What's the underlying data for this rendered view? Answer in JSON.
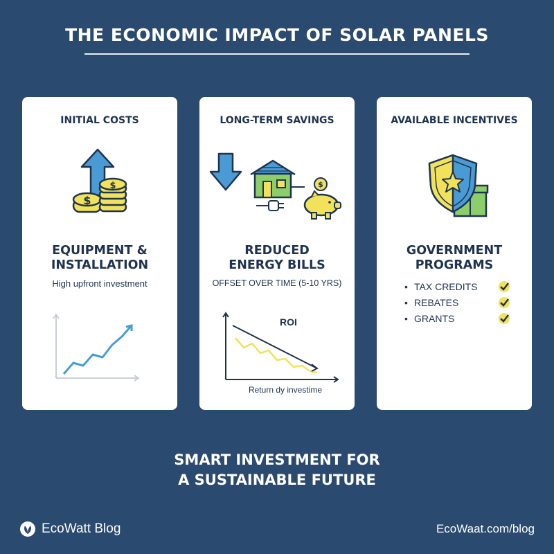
{
  "title": "THE ECONOMIC IMPACT OF SOLAR PANELS",
  "cards": [
    {
      "heading": "INITIAL COSTS",
      "main_line1": "EQUIPMENT &",
      "main_line2": "INSTALLATION",
      "description": "High upfront investment",
      "icons": [
        "arrow-up-icon",
        "coin-stack-icon"
      ]
    },
    {
      "heading": "LONG-TERM SAVINGS",
      "main_line1": "REDUCED",
      "main_line2": "ENERGY BILLS",
      "description": "OFFSET OVER TIME (5-10 YRS)",
      "chart_label": "ROI",
      "chart_caption": "Return dy investime",
      "icons": [
        "arrow-down-icon",
        "solar-house-icon",
        "piggy-bank-icon",
        "plug-icon"
      ]
    },
    {
      "heading": "AVAILABLE INCENTIVES",
      "main_line1": "GOVERNMENT",
      "main_line2": "PROGRAMS",
      "items": [
        "TAX CREDITS",
        "REBATES",
        "GRANTS"
      ],
      "icons": [
        "shield-star-icon",
        "gift-icon",
        "checkmark-icon"
      ]
    }
  ],
  "tagline_line1": "SMART INVESTMENT FOR",
  "tagline_line2": "A SUSTAINABLE FUTURE",
  "brand": "EcoWatt Blog",
  "url": "EcoWaat.com/blog",
  "colors": {
    "background": "#2b4a6f",
    "card": "#ffffff",
    "text_dark": "#1f3350",
    "accent_blue": "#4a9bd4",
    "accent_yellow": "#f2e25a",
    "accent_green": "#8ccf6a"
  }
}
